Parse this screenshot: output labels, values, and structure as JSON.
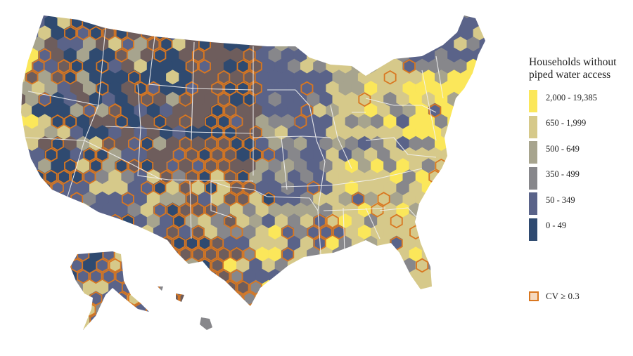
{
  "legend": {
    "title_line1": "Households without",
    "title_line2": "piped water access",
    "classes": [
      {
        "label": "2,000 - 19,385",
        "color": "#fbe75a"
      },
      {
        "label": "650 - 1,999",
        "color": "#d6c98a"
      },
      {
        "label": "500 - 649",
        "color": "#a7a48e"
      },
      {
        "label": "350 - 499",
        "color": "#87878b"
      },
      {
        "label": "50 - 349",
        "color": "#5a6389"
      },
      {
        "label": "0 - 49",
        "color": "#2f4a70"
      }
    ],
    "cv": {
      "label": "CV ≥ 0.3",
      "stroke": "#d97720",
      "fill": "#f6d9bf"
    }
  },
  "chart_data": {
    "type": "heatmap",
    "title": "Households without piped water access",
    "subtype": "hexbin choropleth map of the United States (incl. Alaska and Hawaii)",
    "legend_classes": [
      "0 - 49",
      "50 - 349",
      "350 - 499",
      "500 - 649",
      "650 - 1,999",
      "2,000 - 19,385"
    ],
    "overlay": "Orange hex outlines mark CV ≥ 0.3 (high coefficient of variation)",
    "regional_pattern": {
      "west_mountain": "mostly 0 - 49 and 50 - 349, many CV ≥ 0.3 outlines",
      "great_plains": "masked brownish (high CV) with 0 - 49 values",
      "southwest_texas": "mixed 50 - 349 with scattered 650 - 1,999 and 2,000+; many CV outlines",
      "midwest": "mostly 50 - 349 with scattered 350 - 649",
      "appalachia_southeast": "predominantly 650 - 1,999 with 2,000+ hotspots",
      "northeast_corridor": "2,000 - 19,385 along the coast",
      "florida": "mostly 650 - 1,999",
      "alaska": "mostly 50 - 349 with a few 650 - 1,999"
    },
    "legend_position": "right"
  },
  "map": {
    "ocean_color": "#ffffff",
    "border_color": "#f2f2f2",
    "cv_outline_color": "#d97720",
    "masked_fill": "#6e5d5c"
  }
}
